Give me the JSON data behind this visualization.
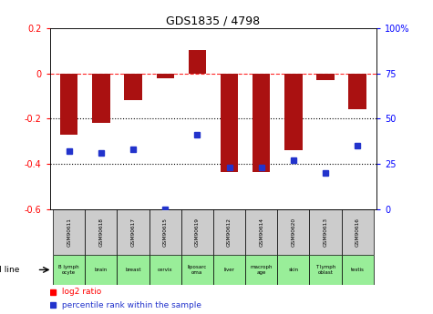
{
  "title": "GDS1835 / 4798",
  "gsm_labels": [
    "GSM90611",
    "GSM90618",
    "GSM90617",
    "GSM90615",
    "GSM90619",
    "GSM90612",
    "GSM90614",
    "GSM90620",
    "GSM90613",
    "GSM90616"
  ],
  "cell_labels": [
    "B lymph\nocyte",
    "brain",
    "breast",
    "cervix",
    "liposarc\noma",
    "liver",
    "macroph\nage",
    "skin",
    "T lymph\noblast",
    "testis"
  ],
  "log2_vals": [
    -0.27,
    -0.22,
    -0.12,
    -0.02,
    0.105,
    -0.435,
    -0.435,
    -0.34,
    -0.03,
    -0.16
  ],
  "pct_rank_vals": [
    32,
    31,
    33,
    0,
    41,
    23,
    23,
    27,
    20,
    35
  ],
  "bar_color": "#aa1111",
  "dot_color": "#2233cc",
  "ylim_left": [
    -0.6,
    0.2
  ],
  "ylim_right": [
    0,
    100
  ],
  "yticks_left": [
    -0.6,
    -0.4,
    -0.2,
    0.0,
    0.2
  ],
  "yticks_right": [
    0,
    25,
    50,
    75,
    100
  ],
  "gsm_bg": "#cccccc",
  "cell_bg": "#99ee99",
  "legend_sq_red": "■ log2 ratio",
  "legend_sq_blue": "■ percentile rank within the sample"
}
